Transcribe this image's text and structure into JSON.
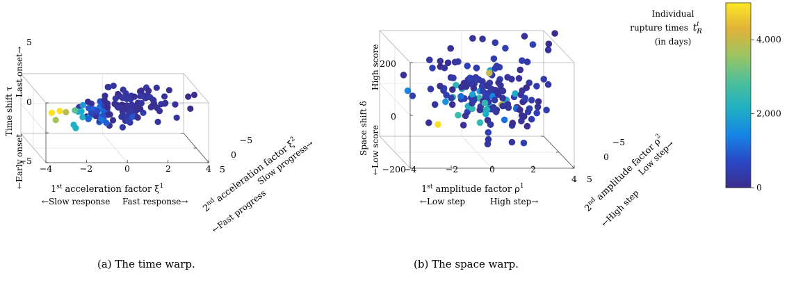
{
  "chart_data": [
    {
      "type": "scatter3d",
      "caption": "(a) The time warp.",
      "x_ticks": [
        "−4",
        "−2",
        "0",
        "2",
        "4"
      ],
      "y_ticks": [
        "−5",
        "0",
        "5"
      ],
      "z_ticks": [
        "−5",
        "0",
        "5"
      ],
      "x_label": "1st acceleration factor ξ1",
      "x_label_main": "acceleration factor ξ",
      "x_label_sup": "1",
      "x_label_ord": "st",
      "x_label_num": "1",
      "x_left": "←Slow response",
      "x_right": "Fast response→",
      "y_label_num": "2",
      "y_label_ord": "nd",
      "y_label_main": "acceleration factor ξ",
      "y_label_sup": "2",
      "y_low": "←Fast progress",
      "y_high": "Slow progress→",
      "z_label_main": "Time shift τ",
      "z_high": "Last onset→",
      "z_low": "←Early onset",
      "xlim": [
        -4,
        4
      ],
      "ylim": [
        -5,
        5
      ],
      "zlim": [
        -5,
        5
      ],
      "clusters": [
        {
          "cx": 0.8,
          "cy": 0.0,
          "cz": 2.0,
          "sx": 1.0,
          "sy": 1.8,
          "sz": 1.0,
          "n": 95,
          "cmin": 0,
          "cmax": 300,
          "slope": 0.55
        },
        {
          "cx": -0.6,
          "cy": 0.0,
          "cz": 1.0,
          "sx": 0.6,
          "sy": 1.5,
          "sz": 0.6,
          "n": 30,
          "cmin": 300,
          "cmax": 1200,
          "slope": 0.5
        },
        {
          "cx": -1.6,
          "cy": 0.0,
          "cz": 0.4,
          "sx": 0.4,
          "sy": 1.2,
          "sz": 0.6,
          "n": 10,
          "cmin": 1800,
          "cmax": 3200,
          "slope": 0.3
        }
      ],
      "fixed_points": [
        {
          "x": -3.1,
          "y": 0.0,
          "z": 0.9,
          "c": 4900
        },
        {
          "x": -2.7,
          "y": 0.0,
          "z": 1.2,
          "c": 4900
        },
        {
          "x": -2.4,
          "y": 0.0,
          "z": 1.0,
          "c": 3900
        },
        {
          "x": -2.9,
          "y": 0.0,
          "z": -0.3,
          "c": 3700
        },
        {
          "x": 3.6,
          "y": 0.0,
          "z": 3.6,
          "c": 0
        },
        {
          "x": 3.9,
          "y": 0.0,
          "z": 3.9,
          "c": 0
        },
        {
          "x": 3.4,
          "y": -2.5,
          "z": 2.8,
          "c": 0
        }
      ]
    },
    {
      "type": "scatter3d",
      "caption": "(b) The space warp.",
      "x_ticks": [
        "−4",
        "−2",
        "0",
        "2",
        "4"
      ],
      "y_ticks": [
        "−5",
        "0",
        "5"
      ],
      "z_ticks": [
        "−200",
        "0",
        "200"
      ],
      "x_label_num": "1",
      "x_label_ord": "st",
      "x_label_main": "amplitude factor ρ",
      "x_label_sup": "1",
      "x_left": "←Low step",
      "x_right": "High step→",
      "y_label_num": "2",
      "y_label_ord": "nd",
      "y_label_main": "amplitude factor ρ",
      "y_label_sup": "2",
      "y_low": "←High step",
      "y_high": "Low step→",
      "z_label_main": "Space shift δ",
      "z_high": "High score",
      "z_low": "←Low score",
      "xlim": [
        -4,
        4
      ],
      "ylim": [
        -5,
        5
      ],
      "zlim": [
        -200,
        200
      ],
      "clusters": [
        {
          "cx": 0.5,
          "cy": 0.0,
          "cz": 30,
          "sx": 1.6,
          "sy": 2.5,
          "sz": 70,
          "n": 140,
          "cmin": 0,
          "cmax": 500,
          "slope": 0
        },
        {
          "cx": 0.0,
          "cy": 0.0,
          "cz": 0,
          "sx": 1.3,
          "sy": 2.0,
          "sz": 35,
          "n": 25,
          "cmin": 1000,
          "cmax": 2600,
          "slope": 0
        }
      ],
      "fixed_points": [
        {
          "x": -1.9,
          "y": 0.0,
          "z": -95,
          "c": 4900
        },
        {
          "x": 1.2,
          "y": 0.0,
          "z": -20,
          "c": 3900
        },
        {
          "x": 0.6,
          "y": 0.0,
          "z": 100,
          "c": 4000
        },
        {
          "x": 2.0,
          "y": 0.0,
          "z": -30,
          "c": 4300
        },
        {
          "x": 3.8,
          "y": 0.0,
          "z": 250,
          "c": 0
        },
        {
          "x": 3.5,
          "y": 0.0,
          "z": 210,
          "c": 0
        }
      ]
    }
  ],
  "colorbar": {
    "title_line1": "Individual",
    "title_line2": "rupture times",
    "title_sym": "t",
    "title_sym_sup": "i",
    "title_sym_sub": "R",
    "title_line3": "(in days)",
    "ticks": [
      "0",
      "2,000",
      "4,000"
    ],
    "tick_values": [
      0,
      2000,
      4000
    ],
    "min": 0,
    "max": 5000,
    "colormap": [
      "#3b2d8c",
      "#2a48c7",
      "#1685e5",
      "#1fb0c4",
      "#4dbf9a",
      "#9bc463",
      "#e0b23a",
      "#fde725"
    ]
  }
}
